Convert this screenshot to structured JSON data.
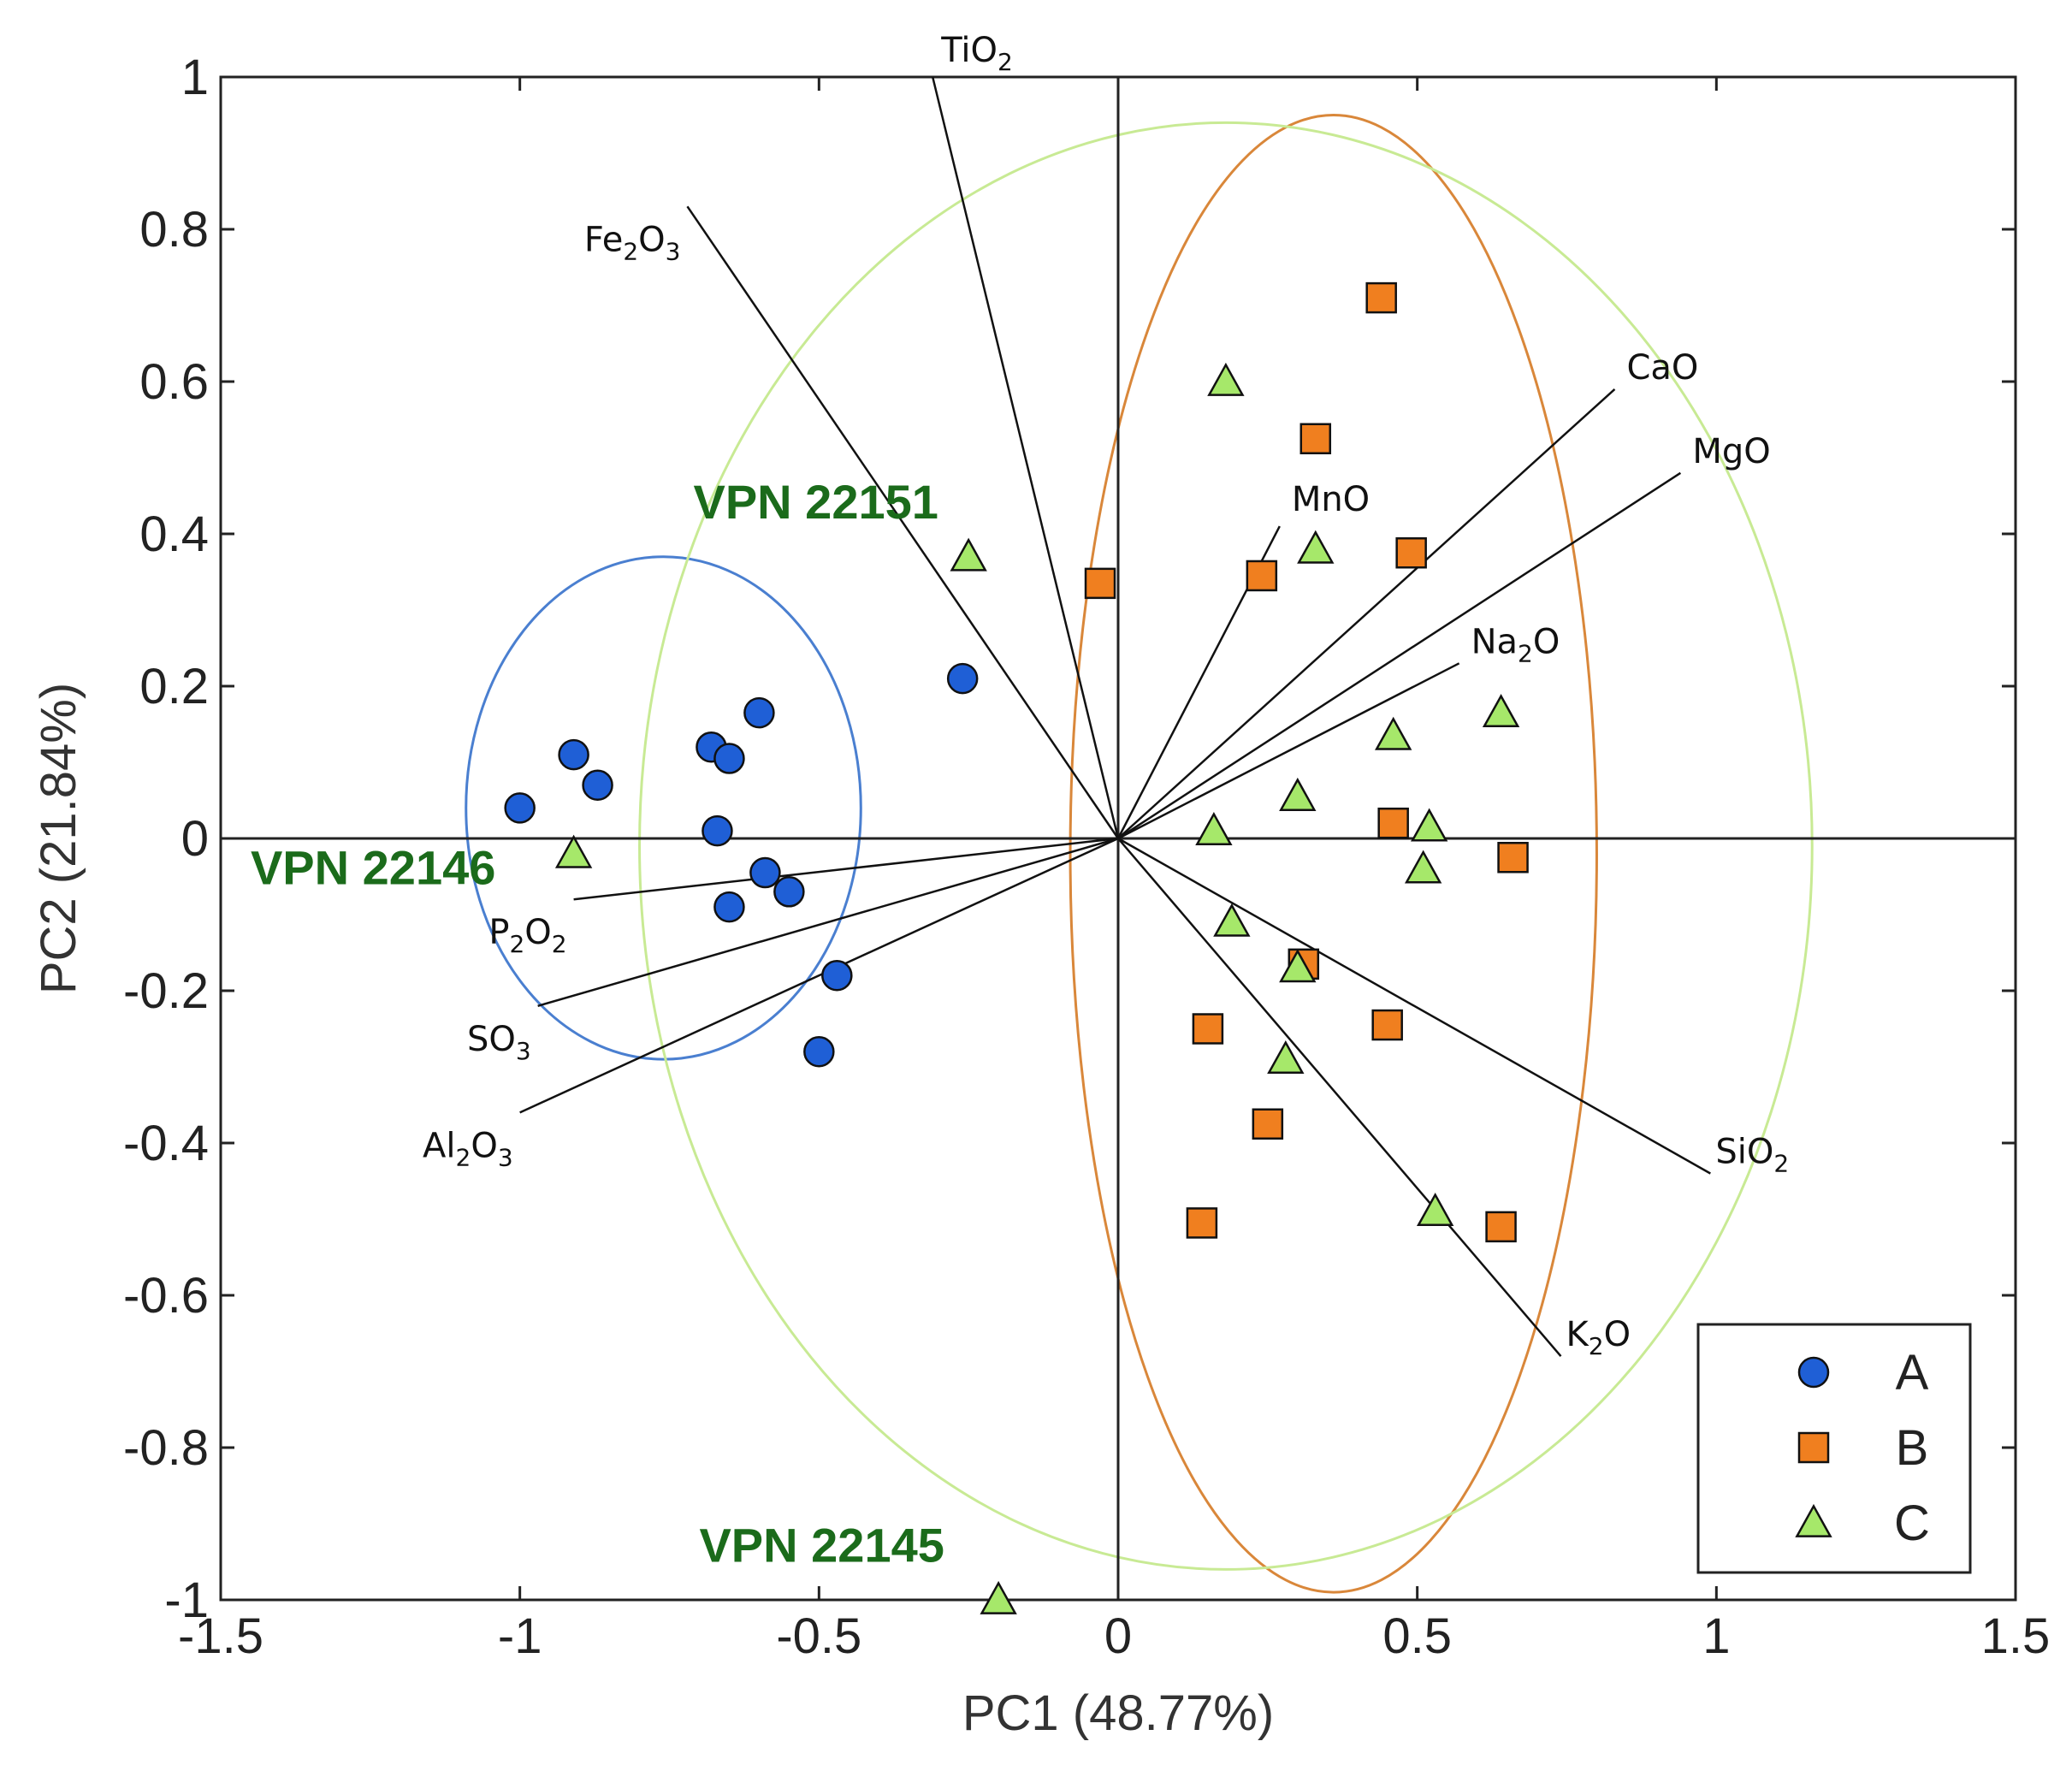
{
  "chart_data": {
    "type": "scatter",
    "xlabel": "PC1 (48.77%)",
    "ylabel": "PC2 (21.84%)",
    "xlim": [
      -1.5,
      1.5
    ],
    "ylim": [
      -1,
      1
    ],
    "x_ticks": [
      -1.5,
      -1,
      -0.5,
      0,
      0.5,
      1,
      1.5
    ],
    "y_ticks": [
      -1,
      -0.8,
      -0.6,
      -0.4,
      -0.2,
      0,
      0.2,
      0.4,
      0.6,
      0.8,
      1
    ],
    "x_tick_labels": [
      "-1.5",
      "-1",
      "-0.5",
      "0",
      "0.5",
      "1",
      "1.5"
    ],
    "y_tick_labels": [
      "-1",
      "-0.8",
      "-0.6",
      "-0.4",
      "-0.2",
      "0",
      "0.2",
      "0.4",
      "0.6",
      "0.8",
      "1"
    ],
    "grid": false,
    "legend_position": "bottom-right",
    "series": [
      {
        "name": "A",
        "marker": "circle",
        "color": "#1f5fd6",
        "points": [
          [
            -1.0,
            0.04
          ],
          [
            -0.91,
            0.11
          ],
          [
            -0.87,
            0.07
          ],
          [
            -0.68,
            0.12
          ],
          [
            -0.65,
            0.105
          ],
          [
            -0.6,
            0.165
          ],
          [
            -0.67,
            0.01
          ],
          [
            -0.59,
            -0.045
          ],
          [
            -0.55,
            -0.07
          ],
          [
            -0.65,
            -0.09
          ],
          [
            -0.47,
            -0.18
          ],
          [
            -0.5,
            -0.28
          ],
          [
            -0.26,
            0.21
          ]
        ]
      },
      {
        "name": "B",
        "marker": "square",
        "color": "#f07f1f",
        "points": [
          [
            0.44,
            0.71
          ],
          [
            0.33,
            0.525
          ],
          [
            0.49,
            0.375
          ],
          [
            0.24,
            0.345
          ],
          [
            -0.03,
            0.335
          ],
          [
            0.46,
            0.02
          ],
          [
            0.66,
            -0.025
          ],
          [
            0.31,
            -0.165
          ],
          [
            0.15,
            -0.25
          ],
          [
            0.45,
            -0.245
          ],
          [
            0.25,
            -0.375
          ],
          [
            0.14,
            -0.505
          ],
          [
            0.64,
            -0.51
          ]
        ]
      },
      {
        "name": "C",
        "marker": "triangle",
        "color": "#a6e86a",
        "points": [
          [
            0.18,
            0.6
          ],
          [
            -0.25,
            0.37
          ],
          [
            0.33,
            0.38
          ],
          [
            0.46,
            0.135
          ],
          [
            0.64,
            0.165
          ],
          [
            0.3,
            0.055
          ],
          [
            0.16,
            0.01
          ],
          [
            0.52,
            0.015
          ],
          [
            0.51,
            -0.04
          ],
          [
            0.19,
            -0.11
          ],
          [
            0.3,
            -0.17
          ],
          [
            0.28,
            -0.29
          ],
          [
            0.53,
            -0.49
          ],
          [
            -0.91,
            -0.02
          ],
          [
            -0.2,
            -1.0
          ]
        ]
      }
    ],
    "loadings": [
      {
        "name": "TiO2",
        "label_parts": [
          [
            "TiO",
            ""
          ],
          [
            "2",
            "sub"
          ]
        ],
        "x": -0.31,
        "y": 1.0
      },
      {
        "name": "Fe2O3",
        "label_parts": [
          [
            "Fe",
            ""
          ],
          [
            "2",
            "sub"
          ],
          [
            "O",
            ""
          ],
          [
            "3",
            "sub"
          ]
        ],
        "x": -0.72,
        "y": 0.83
      },
      {
        "name": "CaO",
        "label_parts": [
          [
            "CaO",
            ""
          ]
        ],
        "x": 0.83,
        "y": 0.59
      },
      {
        "name": "MgO",
        "label_parts": [
          [
            "MgO",
            ""
          ]
        ],
        "x": 0.94,
        "y": 0.48
      },
      {
        "name": "MnO",
        "label_parts": [
          [
            "MnO",
            ""
          ]
        ],
        "x": 0.27,
        "y": 0.41
      },
      {
        "name": "Na2O",
        "label_parts": [
          [
            "Na",
            ""
          ],
          [
            "2",
            "sub"
          ],
          [
            "O",
            ""
          ]
        ],
        "x": 0.57,
        "y": 0.23
      },
      {
        "name": "P2O2",
        "label_parts": [
          [
            "P",
            ""
          ],
          [
            "2",
            "sub"
          ],
          [
            "O",
            ""
          ],
          [
            "2",
            "sub"
          ]
        ],
        "x": -0.91,
        "y": -0.08
      },
      {
        "name": "SO3",
        "label_parts": [
          [
            "SO",
            ""
          ],
          [
            "3",
            "sub"
          ]
        ],
        "x": -0.97,
        "y": -0.22
      },
      {
        "name": "Al2O3",
        "label_parts": [
          [
            "Al",
            ""
          ],
          [
            "2",
            "sub"
          ],
          [
            "O",
            ""
          ],
          [
            "3",
            "sub"
          ]
        ],
        "x": -1.0,
        "y": -0.36
      },
      {
        "name": "SiO2",
        "label_parts": [
          [
            "SiO",
            ""
          ],
          [
            "2",
            "sub"
          ]
        ],
        "x": 0.99,
        "y": -0.44
      },
      {
        "name": "K2O",
        "label_parts": [
          [
            "K",
            ""
          ],
          [
            "2",
            "sub"
          ],
          [
            "O",
            ""
          ]
        ],
        "x": 0.74,
        "y": -0.68
      }
    ],
    "ellipses": [
      {
        "group": "A",
        "color": "#4a7fd0",
        "cx": -0.76,
        "cy": 0.04,
        "rx": 0.33,
        "ry": 0.33
      },
      {
        "group": "B",
        "color": "#d9873a",
        "cx": 0.36,
        "cy": -0.02,
        "rx": 0.44,
        "ry": 0.97
      },
      {
        "group": "C",
        "color": "#c8ea94",
        "cx": 0.18,
        "cy": -0.01,
        "rx": 0.98,
        "ry": 0.95
      }
    ],
    "annotations": [
      {
        "text": "VPN 22151",
        "x": -0.71,
        "y": 0.42
      },
      {
        "text": "VPN 22146",
        "x": -1.45,
        "y": -0.06
      },
      {
        "text": "VPN 22145",
        "x": -0.7,
        "y": -0.95
      }
    ],
    "legend": [
      "A",
      "B",
      "C"
    ]
  }
}
